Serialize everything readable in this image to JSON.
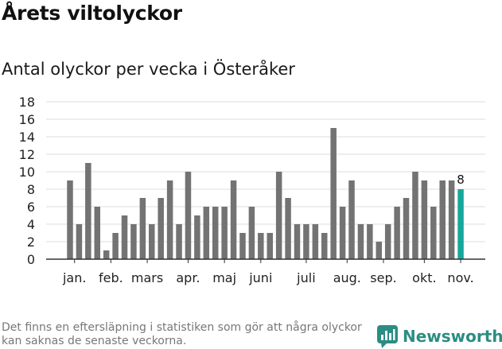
{
  "header": {
    "title": "Årets viltolyckor",
    "subtitle": "Antal olyckor per vecka i Österåker"
  },
  "footer": {
    "note": "Det finns en eftersläpning i statistiken som gör att några olyckor kan saknas de senaste veckorna.",
    "brand": "Newsworthy"
  },
  "colors": {
    "bar": "#737373",
    "highlight": "#16a89a",
    "grid": "#dddddd",
    "axis": "#333333",
    "text": "#222222"
  },
  "icons": {
    "brand_logo": "newsworthy-chart-bubble-icon"
  },
  "chart_data": {
    "type": "bar",
    "title": "Antal olyckor per vecka i Österåker",
    "xlabel": "",
    "ylabel": "",
    "ylim": [
      0,
      18
    ],
    "yticks": [
      0,
      2,
      4,
      6,
      8,
      10,
      12,
      14,
      16,
      18
    ],
    "grid": true,
    "values": [
      9,
      4,
      11,
      6,
      1,
      3,
      5,
      4,
      7,
      4,
      7,
      9,
      4,
      10,
      5,
      6,
      6,
      6,
      9,
      3,
      6,
      3,
      3,
      10,
      7,
      4,
      4,
      4,
      3,
      15,
      6,
      9,
      4,
      4,
      2,
      4,
      6,
      7,
      10,
      9,
      6,
      9,
      9,
      8
    ],
    "highlight_index": 43,
    "highlight_label": "8",
    "month_labels": [
      {
        "label": "jan.",
        "at": 0.5
      },
      {
        "label": "feb.",
        "at": 4.5
      },
      {
        "label": "mars",
        "at": 8.5
      },
      {
        "label": "apr.",
        "at": 13
      },
      {
        "label": "maj",
        "at": 17
      },
      {
        "label": "juni",
        "at": 21
      },
      {
        "label": "juli",
        "at": 26
      },
      {
        "label": "aug.",
        "at": 30.5
      },
      {
        "label": "sep.",
        "at": 34.5
      },
      {
        "label": "okt.",
        "at": 39
      },
      {
        "label": "nov.",
        "at": 43
      }
    ]
  }
}
